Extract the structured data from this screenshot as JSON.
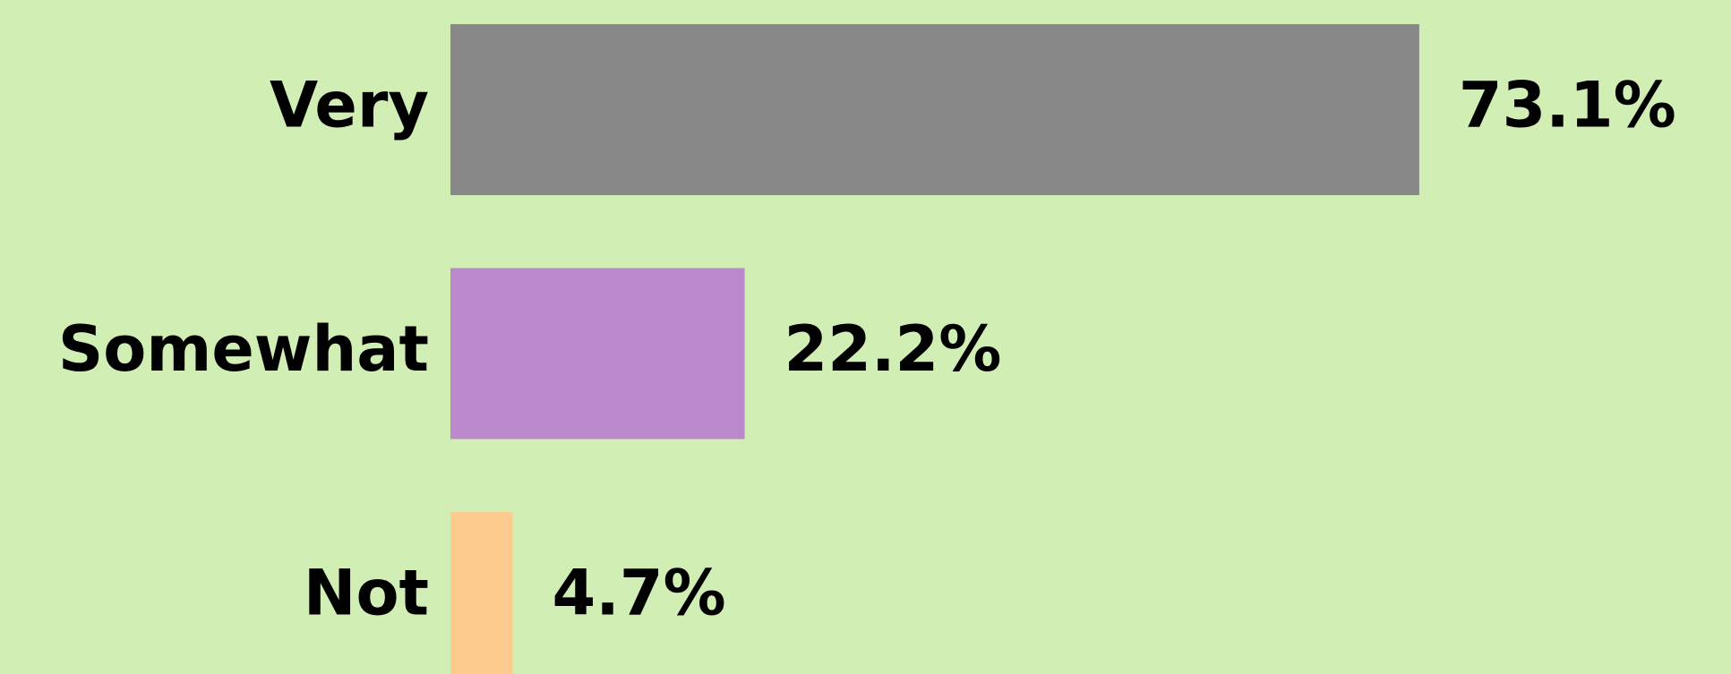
{
  "chart_data": {
    "type": "bar",
    "orientation": "horizontal",
    "categories": [
      "Very",
      "Somewhat",
      "Not"
    ],
    "values": [
      73.1,
      22.2,
      4.7
    ],
    "value_labels": [
      "73.1%",
      "22.2%",
      "4.7%"
    ],
    "colors": [
      "#888888",
      "#bb88cc",
      "#fdcb8e"
    ]
  }
}
